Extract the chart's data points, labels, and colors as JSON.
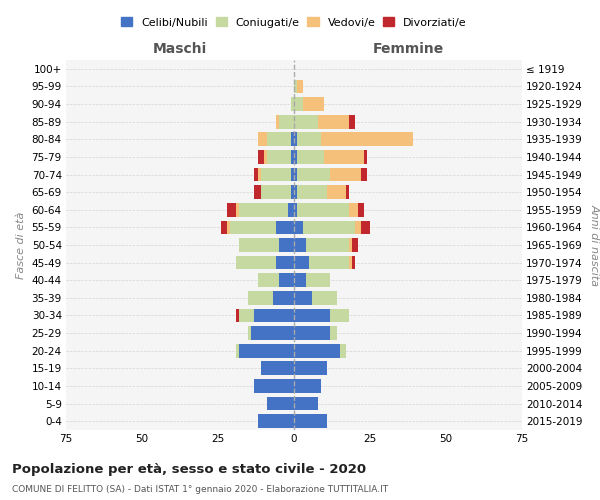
{
  "age_groups": [
    "0-4",
    "5-9",
    "10-14",
    "15-19",
    "20-24",
    "25-29",
    "30-34",
    "35-39",
    "40-44",
    "45-49",
    "50-54",
    "55-59",
    "60-64",
    "65-69",
    "70-74",
    "75-79",
    "80-84",
    "85-89",
    "90-94",
    "95-99",
    "100+"
  ],
  "birth_years": [
    "2015-2019",
    "2010-2014",
    "2005-2009",
    "2000-2004",
    "1995-1999",
    "1990-1994",
    "1985-1989",
    "1980-1984",
    "1975-1979",
    "1970-1974",
    "1965-1969",
    "1960-1964",
    "1955-1959",
    "1950-1954",
    "1945-1949",
    "1940-1944",
    "1935-1939",
    "1930-1934",
    "1925-1929",
    "1920-1924",
    "≤ 1919"
  ],
  "maschi": {
    "celibi": [
      12,
      9,
      13,
      11,
      18,
      14,
      13,
      7,
      5,
      6,
      5,
      6,
      2,
      1,
      1,
      1,
      1,
      0,
      0,
      0,
      0
    ],
    "coniugati": [
      0,
      0,
      0,
      0,
      1,
      1,
      5,
      8,
      7,
      13,
      13,
      15,
      16,
      10,
      10,
      8,
      8,
      5,
      1,
      0,
      0
    ],
    "vedovi": [
      0,
      0,
      0,
      0,
      0,
      0,
      0,
      0,
      0,
      0,
      0,
      1,
      1,
      0,
      1,
      1,
      3,
      1,
      0,
      0,
      0
    ],
    "divorziati": [
      0,
      0,
      0,
      0,
      0,
      0,
      1,
      0,
      0,
      0,
      0,
      2,
      3,
      2,
      1,
      2,
      0,
      0,
      0,
      0,
      0
    ]
  },
  "femmine": {
    "nubili": [
      11,
      8,
      9,
      11,
      15,
      12,
      12,
      6,
      4,
      5,
      4,
      3,
      1,
      1,
      1,
      1,
      1,
      0,
      0,
      0,
      0
    ],
    "coniugate": [
      0,
      0,
      0,
      0,
      2,
      2,
      6,
      8,
      8,
      13,
      14,
      17,
      17,
      10,
      11,
      9,
      8,
      8,
      3,
      1,
      0
    ],
    "vedove": [
      0,
      0,
      0,
      0,
      0,
      0,
      0,
      0,
      0,
      1,
      1,
      2,
      3,
      6,
      10,
      13,
      30,
      10,
      7,
      2,
      0
    ],
    "divorziate": [
      0,
      0,
      0,
      0,
      0,
      0,
      0,
      0,
      0,
      1,
      2,
      3,
      2,
      1,
      2,
      1,
      0,
      2,
      0,
      0,
      0
    ]
  },
  "colors": {
    "celibi_nubili": "#4472c4",
    "coniugati_e": "#c5d9a0",
    "vedovi_e": "#f5c07a",
    "divorziati_e": "#c0282e"
  },
  "xlim": 75,
  "title": "Popolazione per età, sesso e stato civile - 2020",
  "subtitle": "COMUNE DI FELITTO (SA) - Dati ISTAT 1° gennaio 2020 - Elaborazione TUTTITALIA.IT",
  "ylabel_left": "Fasce di età",
  "ylabel_right": "Anni di nascita",
  "xlabel_left": "Maschi",
  "xlabel_right": "Femmine"
}
